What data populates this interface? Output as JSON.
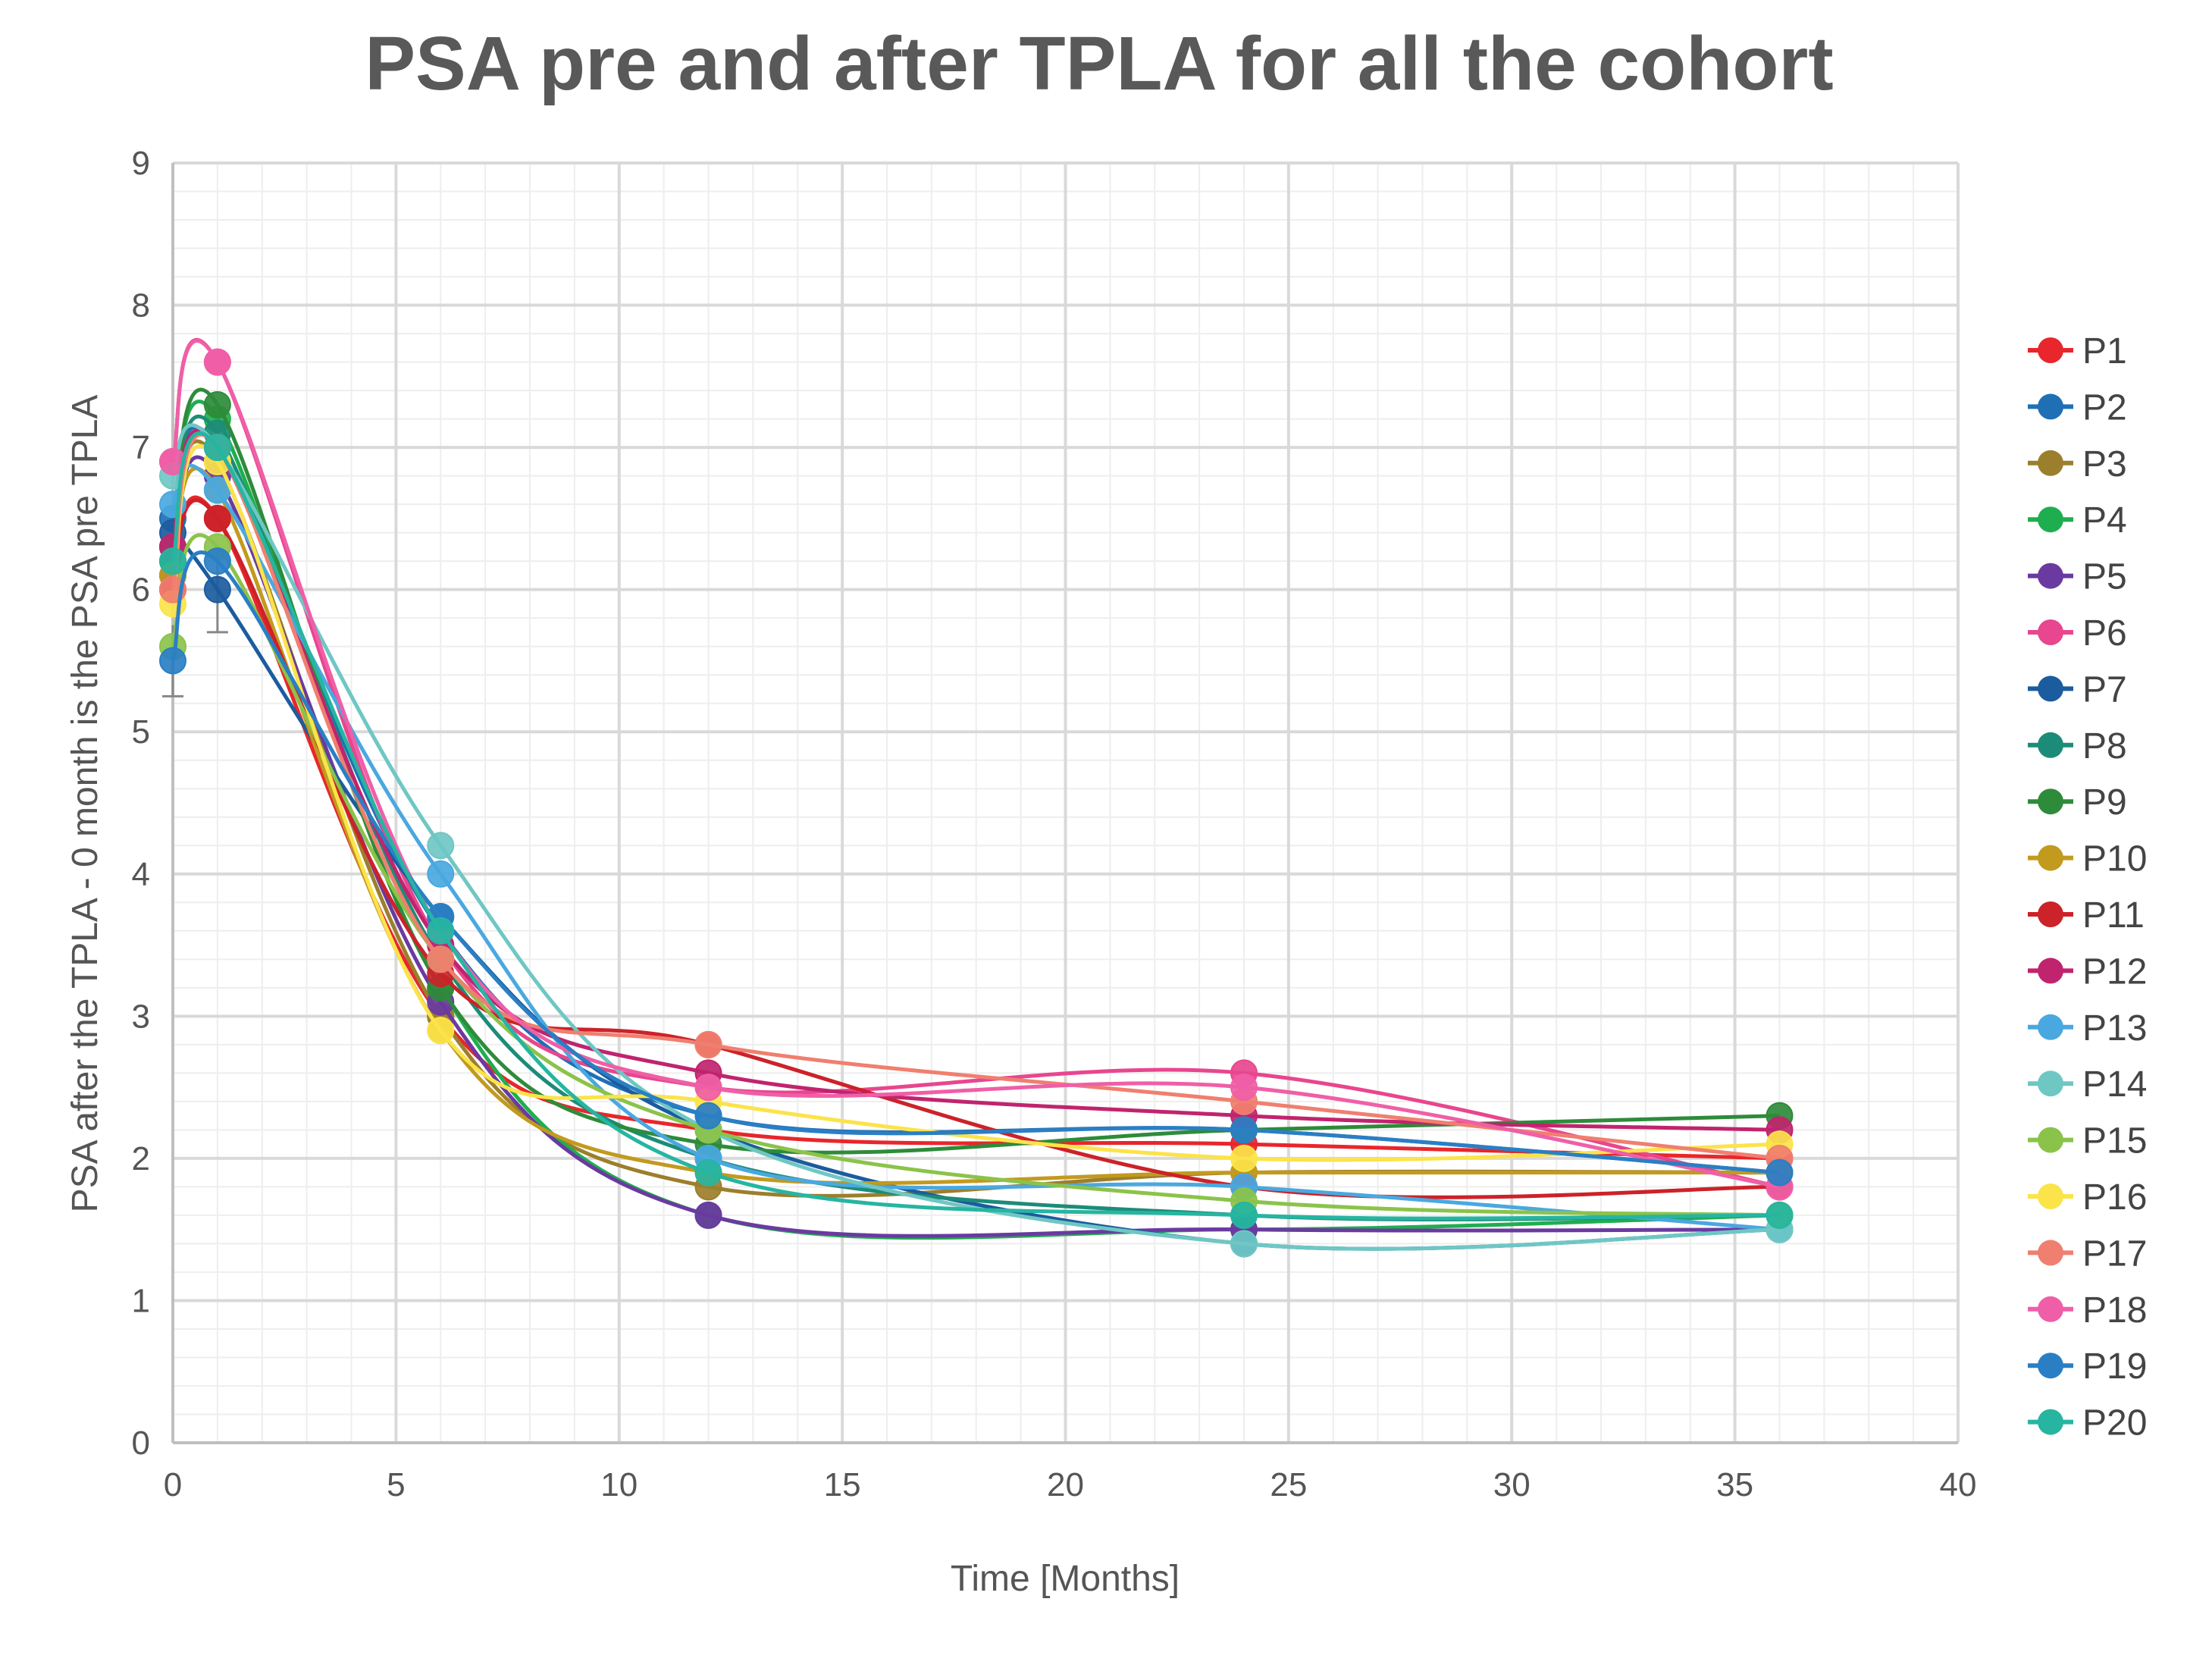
{
  "chart_data": {
    "type": "line",
    "title": "PSA pre and after TPLA for all the cohort",
    "xlabel": "Time [Months]",
    "ylabel": "PSA after the TPLA - 0 month is the PSA pre TPLA",
    "xlim": [
      0,
      40
    ],
    "ylim": [
      0,
      9
    ],
    "x_ticks": [
      0,
      5,
      10,
      15,
      20,
      25,
      30,
      35,
      40
    ],
    "y_ticks": [
      0,
      1,
      2,
      3,
      4,
      5,
      6,
      7,
      8,
      9
    ],
    "grid": true,
    "legend_position": "right",
    "x": [
      0,
      1,
      6,
      12,
      24,
      36
    ],
    "series": [
      {
        "name": "P1",
        "color": "#e8262b",
        "values": [
          6.0,
          6.5,
          3.0,
          2.2,
          2.1,
          2.0
        ]
      },
      {
        "name": "P2",
        "color": "#1f6fb5",
        "values": [
          6.5,
          7.0,
          3.6,
          2.3,
          2.2,
          1.9
        ]
      },
      {
        "name": "P3",
        "color": "#9c7f2c",
        "values": [
          6.2,
          6.9,
          3.0,
          1.8,
          1.9,
          1.9
        ]
      },
      {
        "name": "P4",
        "color": "#1fae4f",
        "values": [
          6.3,
          7.2,
          3.2,
          1.6,
          1.5,
          1.6
        ]
      },
      {
        "name": "P5",
        "color": "#6a3aa0",
        "values": [
          6.1,
          6.8,
          3.1,
          1.6,
          1.5,
          1.5
        ]
      },
      {
        "name": "P6",
        "color": "#e8468e",
        "values": [
          6.9,
          7.6,
          3.5,
          2.5,
          2.6,
          1.8
        ]
      },
      {
        "name": "P7",
        "color": "#1b5c9e",
        "values": [
          6.4,
          6.0,
          3.7,
          2.2,
          1.4,
          1.5
        ]
      },
      {
        "name": "P8",
        "color": "#1c8c78",
        "values": [
          6.3,
          7.1,
          3.4,
          2.0,
          1.6,
          1.6
        ]
      },
      {
        "name": "P9",
        "color": "#2e8b3a",
        "values": [
          6.2,
          7.3,
          3.2,
          2.1,
          2.2,
          2.3
        ]
      },
      {
        "name": "P10",
        "color": "#c29a1e",
        "values": [
          6.1,
          6.7,
          2.9,
          1.9,
          1.9,
          1.9
        ]
      },
      {
        "name": "P11",
        "color": "#cc2229",
        "values": [
          6.0,
          6.5,
          3.3,
          2.8,
          1.8,
          1.8
        ]
      },
      {
        "name": "P12",
        "color": "#c0246e",
        "values": [
          6.3,
          7.0,
          3.5,
          2.6,
          2.3,
          2.2
        ]
      },
      {
        "name": "P13",
        "color": "#4aa8e0",
        "values": [
          6.6,
          6.7,
          4.0,
          2.0,
          1.8,
          1.5
        ]
      },
      {
        "name": "P14",
        "color": "#6fc7c4",
        "values": [
          6.8,
          7.0,
          4.2,
          2.2,
          1.4,
          1.5
        ]
      },
      {
        "name": "P15",
        "color": "#8bc34a",
        "values": [
          5.6,
          6.3,
          3.4,
          2.2,
          1.7,
          1.6
        ]
      },
      {
        "name": "P16",
        "color": "#fbe34a",
        "values": [
          5.9,
          6.9,
          2.9,
          2.4,
          2.0,
          2.1
        ]
      },
      {
        "name": "P17",
        "color": "#f07f6f",
        "values": [
          6.0,
          7.0,
          3.4,
          2.8,
          2.4,
          2.0
        ]
      },
      {
        "name": "P18",
        "color": "#ef5fa7",
        "values": [
          6.9,
          7.6,
          3.6,
          2.5,
          2.5,
          1.8
        ]
      },
      {
        "name": "P19",
        "color": "#2a7fc4",
        "values": [
          5.5,
          6.2,
          3.7,
          2.3,
          2.2,
          1.9
        ]
      },
      {
        "name": "P20",
        "color": "#26b5a1",
        "values": [
          6.2,
          7.0,
          3.6,
          1.9,
          1.6,
          1.6
        ]
      }
    ]
  }
}
